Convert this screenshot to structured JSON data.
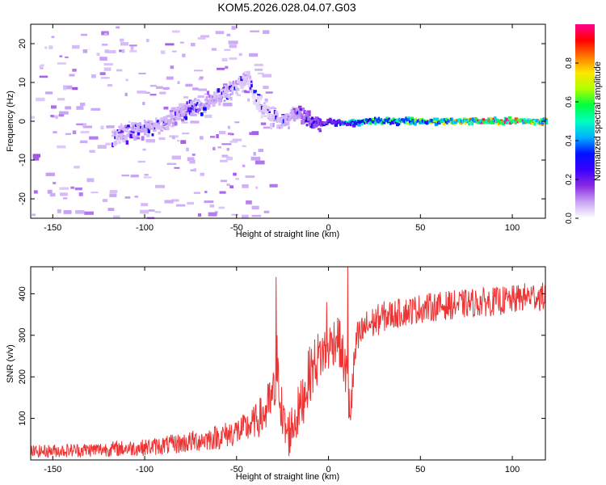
{
  "figure_title": "KOM5.2026.028.04.07.G03",
  "chart_data": [
    {
      "type": "heatmap",
      "title": "KOM5.2026.028.04.07.G03",
      "xlabel": "Height of straight line (km)",
      "ylabel": "Frequency (Hz)",
      "xlim": [
        -162,
        118
      ],
      "ylim": [
        -25,
        25
      ],
      "xticks": [
        -150,
        -100,
        -50,
        0,
        50,
        100
      ],
      "yticks": [
        -20,
        -10,
        0,
        10,
        20
      ],
      "colorbar": {
        "label": "Normalized spectral amplitude",
        "range": [
          0.0,
          1.0
        ],
        "ticks": [
          "0.0",
          "0.2",
          "0.4",
          "0.6",
          "0.8"
        ],
        "tick_values": [
          0.0,
          0.2,
          0.4,
          0.6,
          0.8
        ],
        "colormap": [
          "#ffffff",
          "#c9a6f5",
          "#8a2be2",
          "#3a00ff",
          "#0010ff",
          "#00b0ff",
          "#00ffc0",
          "#00ff40",
          "#b0ff00",
          "#ffe600",
          "#ff7a00",
          "#ff0000",
          "#ff0090"
        ]
      },
      "ridge": {
        "description": "dominant spectral ridge: frequency vs height",
        "x": [
          -118,
          -110,
          -100,
          -92,
          -85,
          -78,
          -70,
          -62,
          -55,
          -48,
          -44,
          -40,
          -35,
          -30,
          -25,
          -20,
          -15,
          -10,
          -5,
          0,
          10,
          20,
          40,
          60,
          80,
          100,
          118
        ],
        "freq": [
          -4,
          -3,
          -2,
          -1,
          1,
          3,
          4,
          6,
          8,
          10,
          11,
          5,
          3,
          1,
          0,
          2,
          1,
          0,
          -1,
          0,
          -0.5,
          0,
          0,
          0,
          0,
          0,
          0
        ],
        "amplitude": [
          0.1,
          0.12,
          0.14,
          0.1,
          0.12,
          0.15,
          0.14,
          0.12,
          0.12,
          0.1,
          0.08,
          0.06,
          0.08,
          0.1,
          0.12,
          0.14,
          0.2,
          0.25,
          0.3,
          0.32,
          0.45,
          0.55,
          0.62,
          0.7,
          0.9,
          0.95,
          0.85
        ]
      }
    },
    {
      "type": "line",
      "xlabel": "Height of straight line (km)",
      "ylabel": "SNR (v/v)",
      "xlim": [
        -162,
        118
      ],
      "ylim": [
        0,
        465
      ],
      "xticks": [
        -150,
        -100,
        -50,
        0,
        50,
        100
      ],
      "yticks": [
        100,
        200,
        300,
        400
      ],
      "series": [
        {
          "name": "SNR",
          "color": "#ee3333",
          "trend_x": [
            -162,
            -150,
            -125,
            -100,
            -80,
            -60,
            -45,
            -35,
            -30,
            -27,
            -25,
            -22,
            -15,
            -10,
            -5,
            0,
            5,
            10,
            12,
            15,
            20,
            30,
            40,
            50,
            60,
            80,
            100,
            110,
            118
          ],
          "trend_y": [
            20,
            22,
            25,
            30,
            40,
            55,
            75,
            110,
            150,
            200,
            90,
            60,
            130,
            210,
            250,
            270,
            300,
            200,
            120,
            280,
            320,
            345,
            355,
            365,
            370,
            378,
            385,
            395,
            392
          ],
          "noise_x": [
            -162,
            -100,
            -60,
            -40,
            -30,
            -20,
            -10,
            0,
            10,
            20,
            40,
            80,
            118
          ],
          "noise_y": [
            15,
            20,
            30,
            40,
            70,
            60,
            70,
            60,
            60,
            40,
            35,
            35,
            35
          ],
          "spikes": [
            {
              "x": -28.5,
              "y": 440
            },
            {
              "x": -28.0,
              "y": 300
            },
            {
              "x": 10.5,
              "y": 465
            },
            {
              "x": 11.0,
              "y": 100
            },
            {
              "x": -1.0,
              "y": 380
            }
          ]
        }
      ]
    }
  ]
}
